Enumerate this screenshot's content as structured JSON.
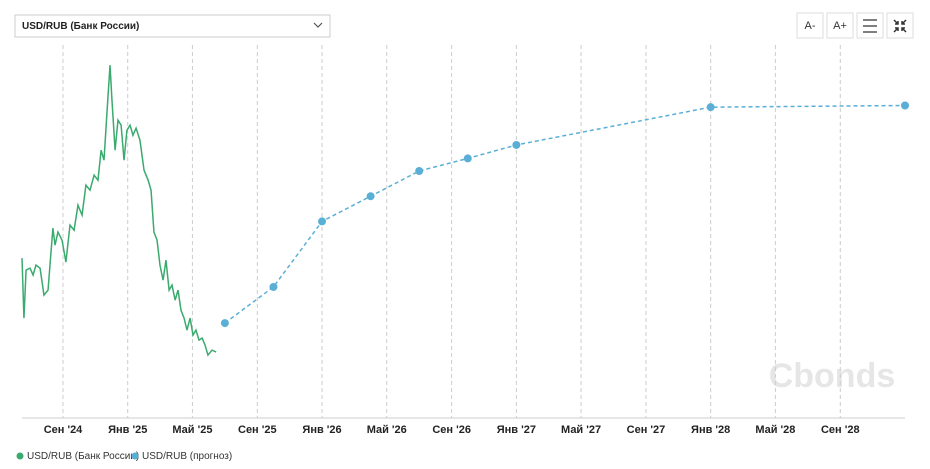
{
  "ui": {
    "selector": "USD/RUB (Банк России)",
    "buttons": [
      "A-",
      "A+"
    ]
  },
  "chart_data": {
    "type": "line",
    "watermark": "Cbonds",
    "xlim": [
      2024.456,
      2029.0
    ],
    "ylim": [
      71,
      115.4
    ],
    "grid": true,
    "xticks": [
      {
        "value": 2024.667,
        "label": "Сен '24"
      },
      {
        "value": 2025.0,
        "label": "Янв '25"
      },
      {
        "value": 2025.333,
        "label": "Май '25"
      },
      {
        "value": 2025.667,
        "label": "Сен '25"
      },
      {
        "value": 2026.0,
        "label": "Янв '26"
      },
      {
        "value": 2026.333,
        "label": "Май '26"
      },
      {
        "value": 2026.667,
        "label": "Сен '26"
      },
      {
        "value": 2027.0,
        "label": "Янв '27"
      },
      {
        "value": 2027.333,
        "label": "Май '27"
      },
      {
        "value": 2027.667,
        "label": "Сен '27"
      },
      {
        "value": 2028.0,
        "label": "Янв '28"
      },
      {
        "value": 2028.333,
        "label": "Май '28"
      },
      {
        "value": 2028.667,
        "label": "Сен '28"
      }
    ],
    "series": [
      {
        "name": "USD/RUB (Банк России)",
        "color": "#3aaa6e",
        "dashed": false,
        "markers": false,
        "x": [
          2024.456,
          2024.466,
          2024.477,
          2024.497,
          2024.513,
          2024.528,
          2024.549,
          2024.569,
          2024.59,
          2024.6,
          2024.615,
          2024.626,
          2024.641,
          2024.662,
          2024.682,
          2024.703,
          2024.724,
          2024.744,
          2024.765,
          2024.785,
          2024.806,
          2024.827,
          2024.847,
          2024.863,
          2024.878,
          2024.894,
          2024.909,
          2024.919,
          2024.935,
          2024.95,
          2024.966,
          2024.981,
          2024.996,
          2025.012,
          2025.027,
          2025.043,
          2025.063,
          2025.084,
          2025.105,
          2025.12,
          2025.135,
          2025.151,
          2025.166,
          2025.182,
          2025.197,
          2025.213,
          2025.228,
          2025.244,
          2025.259,
          2025.274,
          2025.29,
          2025.305,
          2025.321,
          2025.336,
          2025.351,
          2025.367,
          2025.383,
          2025.398,
          2025.413,
          2025.434,
          2025.455
        ],
        "values": [
          90.03,
          82.89,
          88.6,
          88.84,
          88.01,
          89.2,
          88.84,
          85.63,
          86.22,
          89.2,
          93.6,
          91.58,
          93.13,
          92.17,
          89.56,
          93.96,
          93.36,
          96.34,
          95.15,
          98.72,
          98.12,
          99.91,
          99.31,
          102.88,
          101.69,
          107.64,
          113,
          108.83,
          102.88,
          106.45,
          105.86,
          101.69,
          105.26,
          105.86,
          104.67,
          105.5,
          104.07,
          100.5,
          99.31,
          98.12,
          93.13,
          92.17,
          89.2,
          87.41,
          89.79,
          86.22,
          86.82,
          85.03,
          86.22,
          83.84,
          82.89,
          81.46,
          82.89,
          80.87,
          81.46,
          80.27,
          80.51,
          79.68,
          78.49,
          79.08,
          78.85
        ]
      },
      {
        "name": "USD/RUB (прогноз)",
        "color": "#5aafd6",
        "dashed": true,
        "markers": true,
        "x": [
          2025.5,
          2025.75,
          2026.0,
          2026.25,
          2026.5,
          2026.75,
          2027.0,
          2028.0,
          2029.0
        ],
        "values": [
          82.3,
          86.6,
          94.4,
          97.4,
          100.4,
          101.9,
          103.5,
          108.0,
          108.2
        ]
      }
    ]
  }
}
